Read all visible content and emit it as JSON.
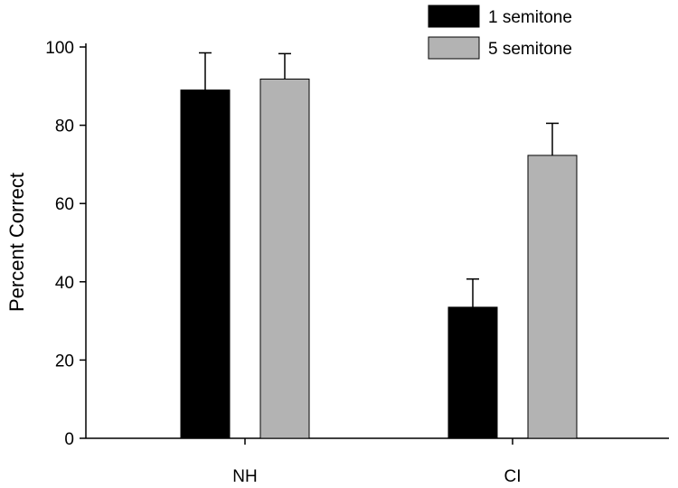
{
  "chart_data": {
    "type": "bar",
    "categories": [
      "NH",
      "CI"
    ],
    "series": [
      {
        "name": "1 semitone",
        "color": "#000000",
        "values": [
          89,
          33.5
        ],
        "errors": [
          9.5,
          7.2
        ]
      },
      {
        "name": "5 semitone",
        "color": "#b3b3b3",
        "values": [
          91.8,
          72.3
        ],
        "errors": [
          6.5,
          8.2
        ]
      }
    ],
    "title": "",
    "xlabel": "",
    "ylabel": "Percent Correct",
    "ylim": [
      0,
      100
    ],
    "yticks": [
      0,
      20,
      40,
      60,
      80,
      100
    ],
    "grid": false,
    "legend_position": "top-right"
  }
}
